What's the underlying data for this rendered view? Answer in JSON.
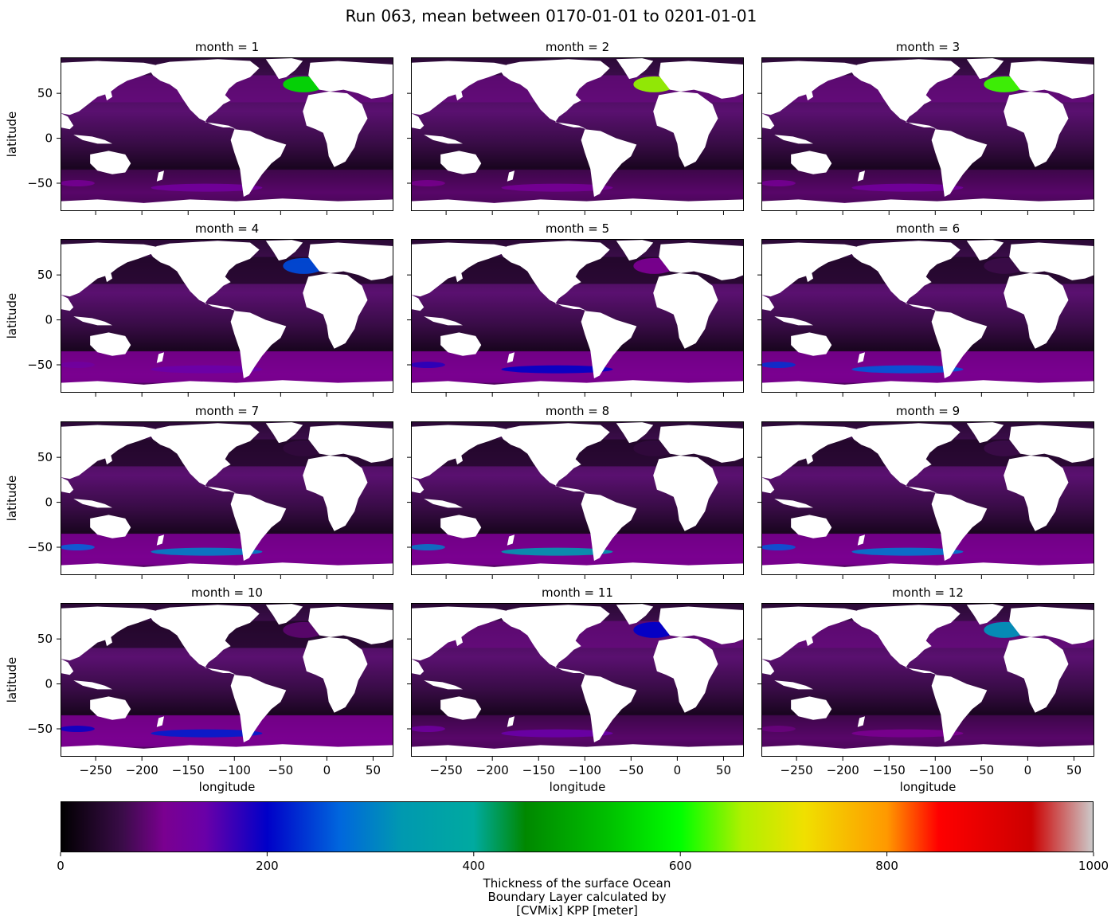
{
  "figure": {
    "suptitle": "Run 063, mean between 0170-01-01 to 0201-01-01"
  },
  "chart_data": {
    "type": "heatmap",
    "facet_variable": "month",
    "panel_title_prefix": "month = ",
    "panels": [
      {
        "month": 1,
        "title": "month = 1",
        "north_atlantic_max": 560,
        "southern_ocean_max": 120
      },
      {
        "month": 2,
        "title": "month = 2",
        "north_atlantic_max": 650,
        "southern_ocean_max": 110
      },
      {
        "month": 3,
        "title": "month = 3",
        "north_atlantic_max": 620,
        "southern_ocean_max": 120
      },
      {
        "month": 4,
        "title": "month = 4",
        "north_atlantic_max": 250,
        "southern_ocean_max": 140
      },
      {
        "month": 5,
        "title": "month = 5",
        "north_atlantic_max": 100,
        "southern_ocean_max": 200
      },
      {
        "month": 6,
        "title": "month = 6",
        "north_atlantic_max": 60,
        "southern_ocean_max": 260
      },
      {
        "month": 7,
        "title": "month = 7",
        "north_atlantic_max": 50,
        "southern_ocean_max": 300
      },
      {
        "month": 8,
        "title": "month = 8",
        "north_atlantic_max": 50,
        "southern_ocean_max": 330
      },
      {
        "month": 9,
        "title": "month = 9",
        "north_atlantic_max": 60,
        "southern_ocean_max": 290
      },
      {
        "month": 10,
        "title": "month = 10",
        "north_atlantic_max": 80,
        "southern_ocean_max": 220
      },
      {
        "month": 11,
        "title": "month = 11",
        "north_atlantic_max": 200,
        "southern_ocean_max": 140
      },
      {
        "month": 12,
        "title": "month = 12",
        "north_atlantic_max": 320,
        "southern_ocean_max": 100
      }
    ],
    "xlabel": "longitude",
    "ylabel": "latitude",
    "xlim": [
      -288,
      72
    ],
    "ylim": [
      -81,
      90
    ],
    "xticks": [
      -250,
      -200,
      -150,
      -100,
      -50,
      0,
      50
    ],
    "xtick_labels": [
      "−250",
      "−200",
      "−150",
      "−100",
      "−50",
      "0",
      "50"
    ],
    "yticks": [
      -50,
      0,
      50
    ],
    "ytick_labels": [
      "−50",
      "0",
      "50"
    ],
    "colorbar": {
      "orientation": "horizontal",
      "colormap": "nipy_spectral",
      "vmin": 0,
      "vmax": 1000,
      "ticks": [
        0,
        200,
        400,
        600,
        800,
        1000
      ],
      "tick_labels": [
        "0",
        "200",
        "400",
        "600",
        "800",
        "1000"
      ],
      "label_lines": [
        "Thickness of the surface Ocean",
        "Boundary Layer calculated by",
        "[CVMix] KPP [meter]"
      ]
    },
    "land_color": "#ffffff",
    "grid": false
  }
}
